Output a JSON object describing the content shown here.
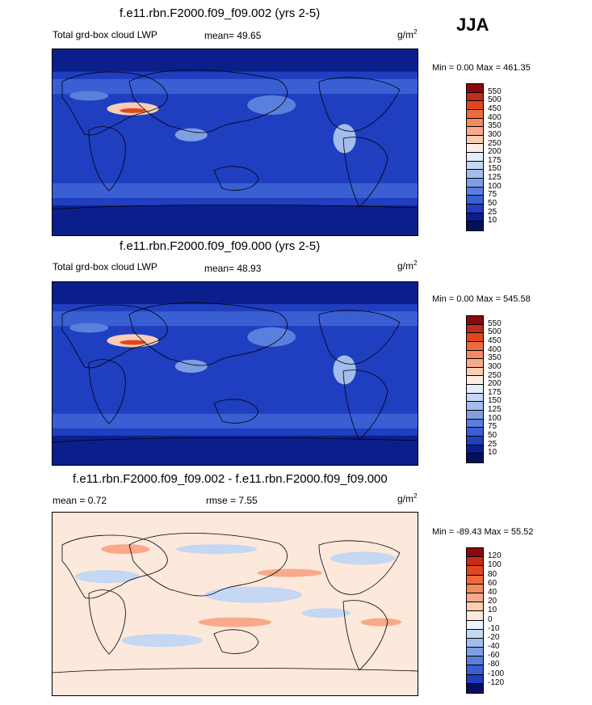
{
  "season": "JJA",
  "panels": [
    {
      "title": "f.e11.rbn.F2000.f09_f09.002 (yrs 2-5)",
      "variable": "Total grd-box cloud LWP",
      "stat": "mean=  49.65",
      "units_base": "g/m",
      "units_exp": "2",
      "minmax": "Min =   0.00 Max = 461.35",
      "levels": [
        "550",
        "500",
        "450",
        "400",
        "350",
        "300",
        "250",
        "200",
        "175",
        "150",
        "125",
        "100",
        "75",
        "50",
        "25",
        "10"
      ],
      "colors": [
        "#8b0a0a",
        "#c42b1a",
        "#e0471f",
        "#ef6a3a",
        "#f58a60",
        "#f8a98a",
        "#fbcdb5",
        "#fdeee4",
        "#e4edf9",
        "#c4d7f3",
        "#a2bdec",
        "#7f9fe4",
        "#5b7fdc",
        "#3a5fd3",
        "#1f3ec0",
        "#0b1f8c",
        "#06105a"
      ],
      "mapmode": "lwp"
    },
    {
      "title": "f.e11.rbn.F2000.f09_f09.000 (yrs 2-5)",
      "variable": "Total grd-box cloud LWP",
      "stat": "mean=  48.93",
      "units_base": "g/m",
      "units_exp": "2",
      "minmax": "Min =   0.00 Max = 545.58",
      "levels": [
        "550",
        "500",
        "450",
        "400",
        "350",
        "300",
        "250",
        "200",
        "175",
        "150",
        "125",
        "100",
        "75",
        "50",
        "25",
        "10"
      ],
      "colors": [
        "#8b0a0a",
        "#c42b1a",
        "#e0471f",
        "#ef6a3a",
        "#f58a60",
        "#f8a98a",
        "#fbcdb5",
        "#fdeee4",
        "#e4edf9",
        "#c4d7f3",
        "#a2bdec",
        "#7f9fe4",
        "#5b7fdc",
        "#3a5fd3",
        "#1f3ec0",
        "#0b1f8c",
        "#06105a"
      ],
      "mapmode": "lwp"
    },
    {
      "title": "f.e11.rbn.F2000.f09_f09.002 - f.e11.rbn.F2000.f09_f09.000",
      "variable": "mean =   0.72",
      "stat": "rmse =   7.55",
      "units_base": "g/m",
      "units_exp": "2",
      "minmax": "Min = -89.43 Max =  55.52",
      "levels": [
        "120",
        "100",
        "80",
        "60",
        "40",
        "20",
        "10",
        "0",
        "-10",
        "-20",
        "-40",
        "-60",
        "-80",
        "-100",
        "-120"
      ],
      "colors": [
        "#8b0a0a",
        "#c42b1a",
        "#e0471f",
        "#ef6a3a",
        "#f58a60",
        "#f8a98a",
        "#fbcdb5",
        "#fde8dc",
        "#eef3fb",
        "#c4d7f3",
        "#a2bdec",
        "#7f9fe4",
        "#5b7fdc",
        "#3a5fd3",
        "#1f3ec0",
        "#06105a"
      ],
      "mapmode": "diff"
    }
  ]
}
